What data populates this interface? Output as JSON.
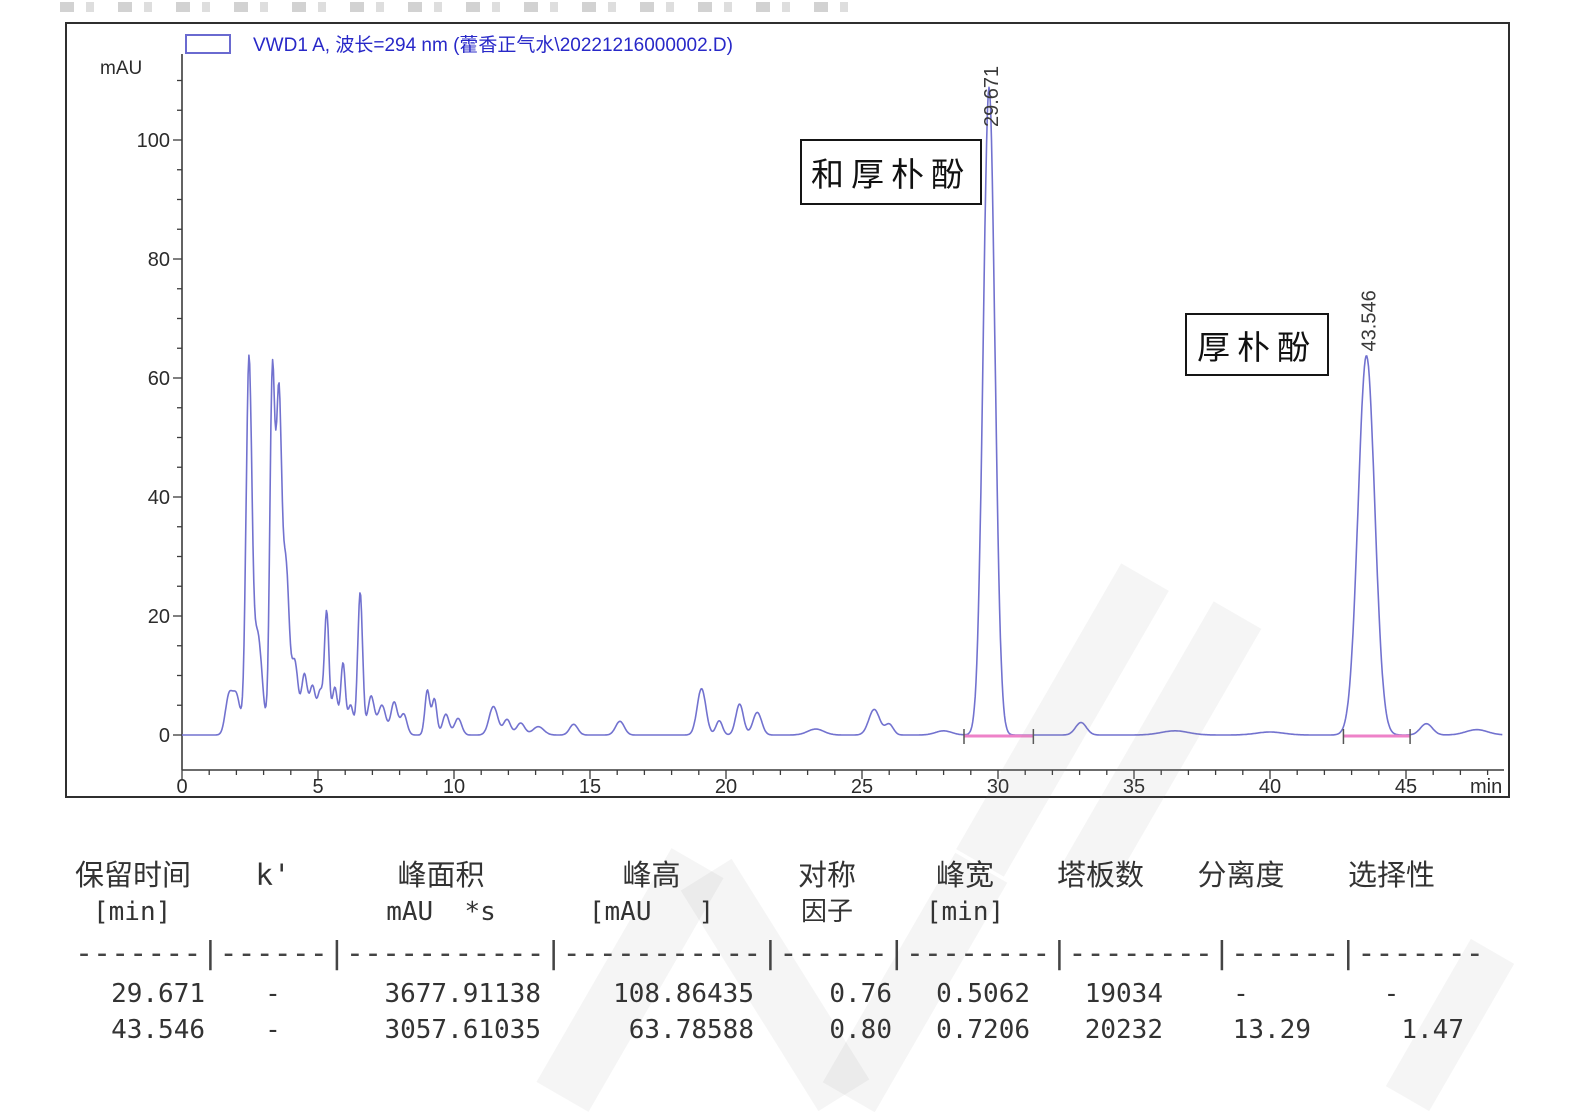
{
  "chart_data": {
    "type": "line",
    "legend": "VWD1 A, 波长=294 nm (藿香正气水\\20221216000002.D)",
    "ylabel": "mAU",
    "xlabel": "min",
    "x_ticks": [
      0,
      5,
      10,
      15,
      20,
      25,
      30,
      35,
      40,
      45
    ],
    "y_ticks": [
      0,
      20,
      40,
      60,
      80,
      100
    ],
    "xlim": [
      0,
      48.5
    ],
    "ylim": [
      -4,
      113
    ],
    "grid": false,
    "legend_position": "top-left",
    "trace_color": "#7272cf",
    "integration_color": "#ee82c8",
    "labeled_peaks": [
      {
        "t": 29.671,
        "height": 108.86435,
        "sigma": 0.215,
        "label": "29.671"
      },
      {
        "t": 43.546,
        "height": 63.78588,
        "sigma": 0.306,
        "label": "43.546"
      }
    ],
    "minor_peaks": [
      [
        1.72,
        6.2,
        0.13
      ],
      [
        2.0,
        6.5,
        0.14
      ],
      [
        2.46,
        61.5,
        0.105
      ],
      [
        2.78,
        17,
        0.16
      ],
      [
        3.32,
        59.5,
        0.09
      ],
      [
        3.56,
        55,
        0.1
      ],
      [
        3.82,
        28,
        0.12
      ],
      [
        4.15,
        12,
        0.12
      ],
      [
        4.5,
        10,
        0.11
      ],
      [
        4.8,
        8,
        0.11
      ],
      [
        5.08,
        7,
        0.1
      ],
      [
        5.32,
        20.5,
        0.085
      ],
      [
        5.62,
        8,
        0.1
      ],
      [
        5.92,
        12,
        0.085
      ],
      [
        6.2,
        5,
        0.1
      ],
      [
        6.55,
        24,
        0.09
      ],
      [
        6.95,
        6.5,
        0.12
      ],
      [
        7.35,
        5,
        0.14
      ],
      [
        7.8,
        5.5,
        0.12
      ],
      [
        8.15,
        3.5,
        0.12
      ],
      [
        9.02,
        7.5,
        0.09
      ],
      [
        9.28,
        6,
        0.09
      ],
      [
        9.7,
        3.5,
        0.12
      ],
      [
        10.15,
        2.8,
        0.13
      ],
      [
        11.45,
        4.8,
        0.16
      ],
      [
        11.95,
        2.6,
        0.13
      ],
      [
        12.45,
        2,
        0.15
      ],
      [
        13.1,
        1.4,
        0.2
      ],
      [
        14.4,
        1.8,
        0.15
      ],
      [
        16.1,
        2.3,
        0.16
      ],
      [
        19.1,
        7.8,
        0.16
      ],
      [
        19.75,
        2.4,
        0.12
      ],
      [
        20.5,
        5.2,
        0.14
      ],
      [
        21.15,
        3.8,
        0.16
      ],
      [
        23.3,
        1.0,
        0.3
      ],
      [
        25.45,
        4.3,
        0.2
      ],
      [
        26.0,
        1.8,
        0.15
      ],
      [
        28.0,
        0.7,
        0.3
      ],
      [
        33.05,
        2.1,
        0.2
      ],
      [
        36.5,
        0.7,
        0.5
      ],
      [
        40.0,
        0.5,
        0.5
      ],
      [
        45.75,
        1.9,
        0.22
      ],
      [
        47.6,
        0.9,
        0.4
      ]
    ],
    "integration_segments": [
      [
        28.75,
        31.3
      ],
      [
        42.7,
        45.15
      ]
    ]
  },
  "annotations": {
    "peak1": "和厚朴酚",
    "peak2": "厚朴酚"
  },
  "table": {
    "headers": [
      {
        "name": "保留时间",
        "unit": "[min]"
      },
      {
        "name": "k'",
        "unit": ""
      },
      {
        "name": "峰面积",
        "unit": "mAU  *s"
      },
      {
        "name": "峰高",
        "unit": "[mAU   ]"
      },
      {
        "name": "对称",
        "unit": "因子"
      },
      {
        "name": "峰宽",
        "unit": "[min]"
      },
      {
        "name": "塔板数",
        "unit": ""
      },
      {
        "name": "分离度",
        "unit": ""
      },
      {
        "name": "选择性",
        "unit": ""
      }
    ],
    "separator": "-------|------|-----------|-----------|------|--------|--------|------|-------",
    "rows": [
      {
        "rt": "29.671",
        "k": "-",
        "area": "3677.91138",
        "height": "108.86435",
        "symmetry": "0.76",
        "width": "0.5062",
        "plates": "19034",
        "resolution": "-",
        "selectivity": "-"
      },
      {
        "rt": "43.546",
        "k": "-",
        "area": "3057.61035",
        "height": "63.78588",
        "symmetry": "0.80",
        "width": "0.7206",
        "plates": "20232",
        "resolution": "13.29",
        "selectivity": "1.47"
      }
    ]
  }
}
